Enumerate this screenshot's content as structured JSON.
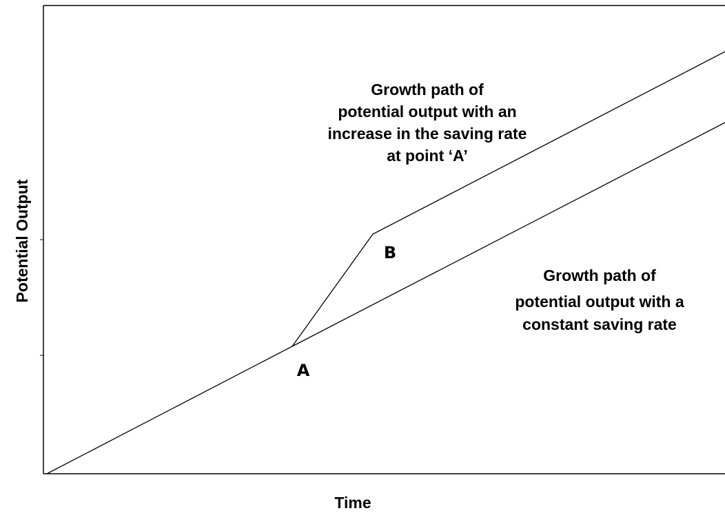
{
  "axes": {
    "y_label": "Potential Output",
    "x_label": "Time"
  },
  "annotations": [
    {
      "lines": [
        "Growth path of",
        "potential output with an",
        "increase in the saving rate",
        "at point ‘A’"
      ]
    },
    {
      "lines": [
        "Growth path of",
        "potential output with a",
        "constant saving rate"
      ]
    }
  ],
  "points": [
    {
      "label": "A"
    },
    {
      "label": "B"
    }
  ]
}
